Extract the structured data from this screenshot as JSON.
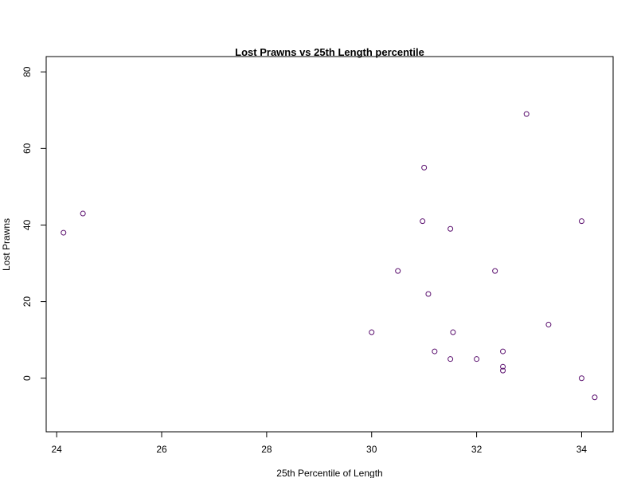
{
  "chart_data": {
    "type": "scatter",
    "title": "Lost Prawns vs 25th Length percentile",
    "xlabel": "25th Percentile of Length",
    "ylabel": "Lost Prawns",
    "xlim": [
      23.8,
      34.6
    ],
    "ylim": [
      -14,
      84
    ],
    "xticks": [
      24,
      26,
      28,
      30,
      32,
      34
    ],
    "yticks": [
      0,
      20,
      40,
      60,
      80
    ],
    "grid": false,
    "point_color": "#5a0f6e",
    "points": [
      {
        "x": 24.13,
        "y": 38
      },
      {
        "x": 24.5,
        "y": 43
      },
      {
        "x": 30.0,
        "y": 12
      },
      {
        "x": 30.5,
        "y": 28
      },
      {
        "x": 30.97,
        "y": 41
      },
      {
        "x": 31.0,
        "y": 55
      },
      {
        "x": 31.08,
        "y": 22
      },
      {
        "x": 31.2,
        "y": 7
      },
      {
        "x": 31.5,
        "y": 39
      },
      {
        "x": 31.5,
        "y": 5
      },
      {
        "x": 31.55,
        "y": 12
      },
      {
        "x": 32.0,
        "y": 5
      },
      {
        "x": 32.35,
        "y": 28
      },
      {
        "x": 32.5,
        "y": 7
      },
      {
        "x": 32.5,
        "y": 3
      },
      {
        "x": 32.5,
        "y": 2
      },
      {
        "x": 32.95,
        "y": 69
      },
      {
        "x": 33.37,
        "y": 14
      },
      {
        "x": 34.0,
        "y": 41
      },
      {
        "x": 34.0,
        "y": 0
      },
      {
        "x": 34.25,
        "y": -5
      }
    ]
  }
}
